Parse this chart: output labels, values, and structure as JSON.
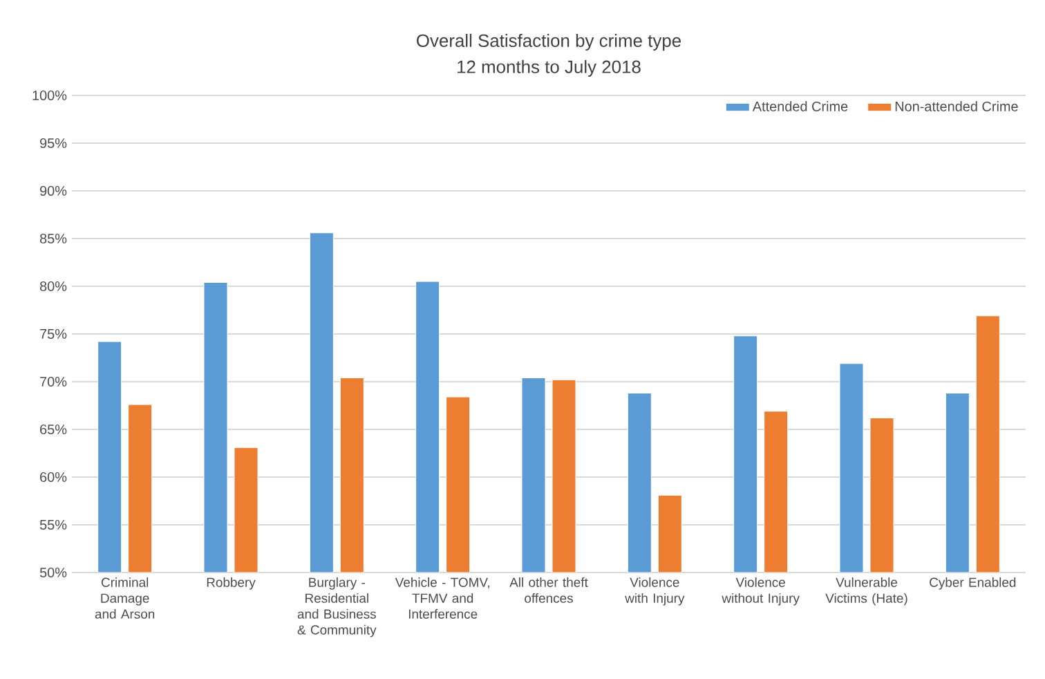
{
  "chart_data": {
    "type": "bar",
    "title": "Overall Satisfaction by crime type",
    "subtitle": "12 months to July 2018",
    "categories": [
      "Criminal Damage and Arson",
      "Robbery",
      "Burglary - Residential and Business & Community",
      "Vehicle - TOMV, TFMV and Interference",
      "All other theft offences",
      "Violence with Injury",
      "Violence without Injury",
      "Vulnerable Victims (Hate)",
      "Cyber Enabled"
    ],
    "series": [
      {
        "name": "Attended Crime",
        "color": "#5b9bd5",
        "values": [
          74.2,
          80.4,
          85.6,
          80.5,
          70.4,
          68.8,
          74.8,
          71.9,
          68.8
        ]
      },
      {
        "name": "Non-attended Crime",
        "color": "#ed7d31",
        "values": [
          67.6,
          63.1,
          70.4,
          68.4,
          70.2,
          58.1,
          66.9,
          66.2,
          76.9
        ]
      }
    ],
    "ylim": [
      50,
      100
    ],
    "yticks": [
      {
        "value": 50,
        "label": "50%"
      },
      {
        "value": 55,
        "label": "55%"
      },
      {
        "value": 60,
        "label": "60%"
      },
      {
        "value": 65,
        "label": "65%"
      },
      {
        "value": 70,
        "label": "70%"
      },
      {
        "value": 75,
        "label": "75%"
      },
      {
        "value": 80,
        "label": "80%"
      },
      {
        "value": 85,
        "label": "85%"
      },
      {
        "value": 90,
        "label": "90%"
      },
      {
        "value": 95,
        "label": "95%"
      },
      {
        "value": 100,
        "label": "100%"
      }
    ],
    "grid": "y",
    "legend": "top right"
  }
}
